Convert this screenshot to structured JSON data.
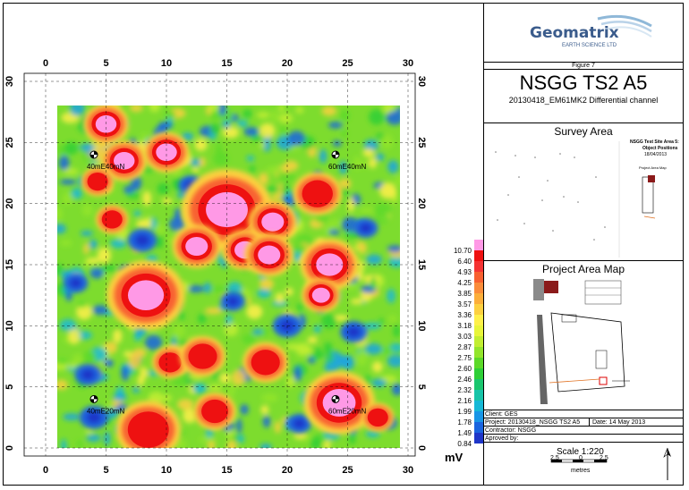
{
  "map": {
    "x_ticks": [
      "0",
      "5",
      "10",
      "15",
      "20",
      "25",
      "30"
    ],
    "y_ticks": [
      "0",
      "5",
      "10",
      "15",
      "20",
      "25",
      "30"
    ],
    "markers": [
      {
        "label": "40mE40mN",
        "x": 4,
        "y": 24
      },
      {
        "label": "60mE40mN",
        "x": 24,
        "y": 24
      },
      {
        "label": "40mE20mN",
        "x": 4,
        "y": 4
      },
      {
        "label": "60mE20mN",
        "x": 24,
        "y": 4
      }
    ],
    "hotspots": [
      {
        "x": 5,
        "y": 26.5,
        "r": 1.4,
        "level": 1.0
      },
      {
        "x": 6.5,
        "y": 23.5,
        "r": 1.4,
        "level": 0.9
      },
      {
        "x": 10,
        "y": 24.2,
        "r": 1.4,
        "level": 1.0
      },
      {
        "x": 5.5,
        "y": 18.7,
        "r": 1.0,
        "level": 0.8
      },
      {
        "x": 15,
        "y": 19.5,
        "r": 2.8,
        "level": 1.0
      },
      {
        "x": 18.8,
        "y": 18.5,
        "r": 1.5,
        "level": 1.0
      },
      {
        "x": 12.5,
        "y": 16.5,
        "r": 1.5,
        "level": 0.9
      },
      {
        "x": 16.5,
        "y": 16.2,
        "r": 1.4,
        "level": 0.85
      },
      {
        "x": 18.5,
        "y": 15.8,
        "r": 1.5,
        "level": 1.0
      },
      {
        "x": 22.5,
        "y": 20.8,
        "r": 1.5,
        "level": 0.7
      },
      {
        "x": 23.5,
        "y": 15,
        "r": 1.8,
        "level": 1.0
      },
      {
        "x": 22.8,
        "y": 12.5,
        "r": 1.2,
        "level": 1.0
      },
      {
        "x": 8.3,
        "y": 12.5,
        "r": 2.4,
        "level": 1.0
      },
      {
        "x": 10.3,
        "y": 7,
        "r": 1.1,
        "level": 0.7
      },
      {
        "x": 13,
        "y": 7.5,
        "r": 1.4,
        "level": 0.75
      },
      {
        "x": 18.2,
        "y": 7,
        "r": 1.4,
        "level": 0.8
      },
      {
        "x": 24.3,
        "y": 3.7,
        "r": 2.2,
        "level": 1.0
      },
      {
        "x": 8.5,
        "y": 1.5,
        "r": 2,
        "level": 0.6
      },
      {
        "x": 14,
        "y": 3,
        "r": 1.3,
        "level": 0.6
      },
      {
        "x": 4.3,
        "y": 21.8,
        "r": 1,
        "level": 0.6
      },
      {
        "x": 27.5,
        "y": 2.5,
        "r": 1,
        "level": 0.6
      }
    ],
    "lows": [
      {
        "x": 4,
        "y": 2.5,
        "r": 1.2
      },
      {
        "x": 3.5,
        "y": 6,
        "r": 1.1
      },
      {
        "x": 8,
        "y": 17,
        "r": 1.2
      },
      {
        "x": 20,
        "y": 10,
        "r": 1.2
      },
      {
        "x": 12,
        "y": 21.5,
        "r": 1.0
      },
      {
        "x": 25.5,
        "y": 9.5,
        "r": 1.1
      },
      {
        "x": 26.5,
        "y": 18,
        "r": 1.0
      },
      {
        "x": 2.5,
        "y": 13.5,
        "r": 1.0
      },
      {
        "x": 15.5,
        "y": 12,
        "r": 1.0
      },
      {
        "x": 21,
        "y": 2,
        "r": 1.0
      }
    ]
  },
  "legend": {
    "values": [
      "10.70",
      "6.40",
      "4.93",
      "4.25",
      "3.85",
      "3.57",
      "3.36",
      "3.18",
      "3.03",
      "2.87",
      "2.75",
      "2.60",
      "2.46",
      "2.32",
      "2.16",
      "1.99",
      "1.78",
      "1.49",
      "0.84"
    ],
    "colors": [
      "#ff99e6",
      "#ee1111",
      "#f53333",
      "#f86030",
      "#fb8c3a",
      "#fcae3a",
      "#fdd040",
      "#fff04a",
      "#e8f53a",
      "#c2ee32",
      "#93e52c",
      "#5cd929",
      "#2ecf37",
      "#1ac66e",
      "#17c4a8",
      "#16b8d6",
      "#1895e6",
      "#1a64df",
      "#1f36c8"
    ],
    "unit": "mV"
  },
  "title_block": {
    "logo_name": "Geomatrix",
    "logo_sub": "EARTH SCIENCE LTD",
    "figure": "Figure 7",
    "title": "NSGG TS2 A5",
    "subtitle": "20130418_EM61MK2 Differential channel",
    "survey_area_heading": "Survey Area",
    "inset_title_1": "NSGG Test Site Area 5:",
    "inset_title_2": "Object Positions",
    "inset_title_3": "18/04/2013",
    "inset_caption": "Project Area Map",
    "project_area_heading": "Project Area Map",
    "client": "Client: GES",
    "project": "Project: 20130418_NSGG TS2 A5",
    "date": "Date:  14 May 2013",
    "contractor": "Contractor: NSGG",
    "approved": "Aproved by:",
    "scale": "Scale 1:220",
    "scale_labels": [
      "2.5",
      "0",
      "2.5"
    ],
    "scale_unit": "metres"
  }
}
